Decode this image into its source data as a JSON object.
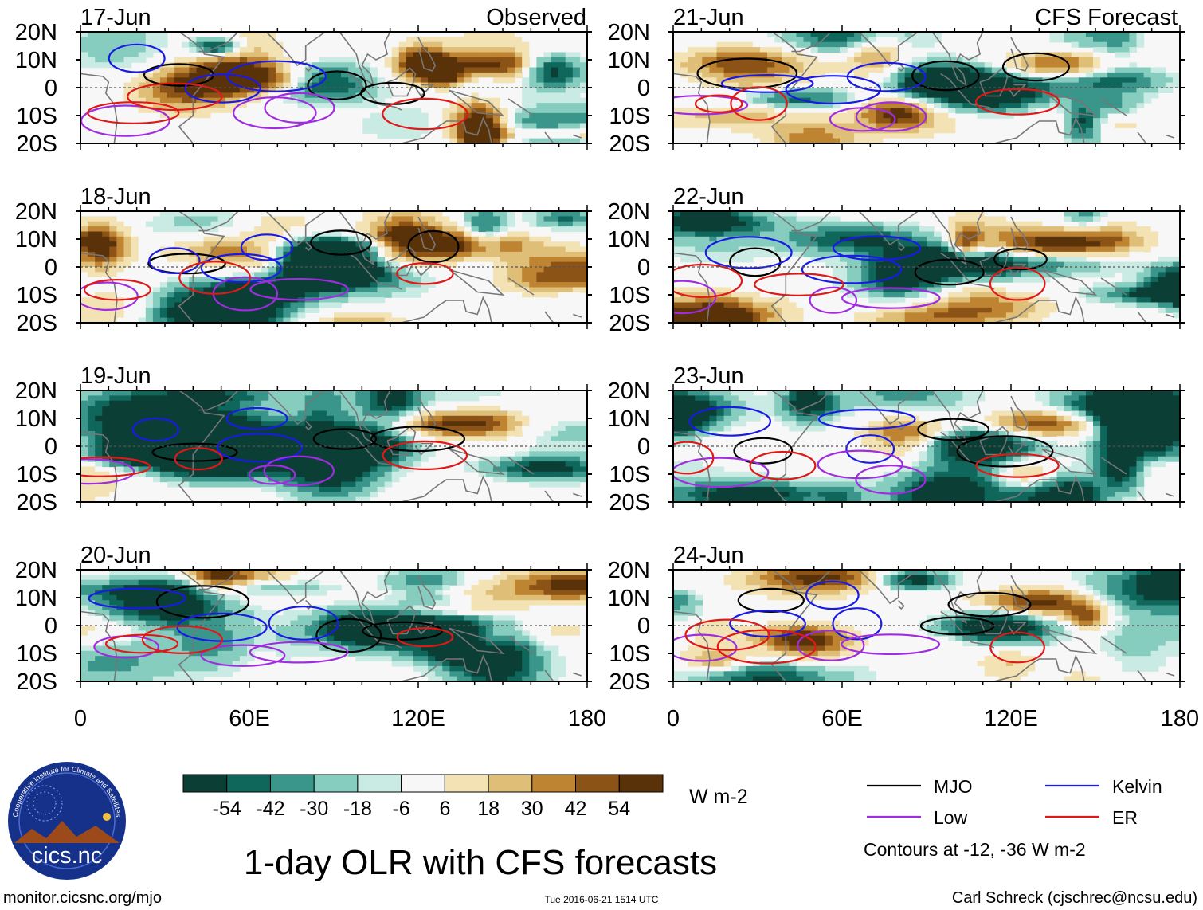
{
  "figure": {
    "title": "1-day OLR with CFS forecasts",
    "website": "monitor.cicsnc.org/mjo",
    "timestamp": "Tue 2016-06-21 1514 UTC",
    "credit": "Carl Schreck (cjschrec@ncsu.edu)",
    "logo": {
      "text": "cics.nc",
      "ring_text": "Cooperative Institute for Climate and Satellites"
    },
    "columns": {
      "left": "Observed",
      "right": "CFS Forecast"
    }
  },
  "chart_data": {
    "type": "heatmap",
    "variable": "OLR anomaly",
    "units": "W m-2",
    "xlim": [
      0,
      180
    ],
    "ylim": [
      -20,
      20
    ],
    "x_ticks": [
      {
        "value": 0,
        "label": "0"
      },
      {
        "value": 60,
        "label": "60E"
      },
      {
        "value": 120,
        "label": "120E"
      },
      {
        "value": 180,
        "label": "180"
      }
    ],
    "y_ticks": [
      {
        "value": 20,
        "label": "20N"
      },
      {
        "value": 10,
        "label": "10N"
      },
      {
        "value": 0,
        "label": "0"
      },
      {
        "value": -10,
        "label": "10S"
      },
      {
        "value": -20,
        "label": "20S"
      }
    ],
    "panels": [
      {
        "date": "17-Jun",
        "source": "Observed",
        "column": 0,
        "row": 0,
        "seed": 17
      },
      {
        "date": "18-Jun",
        "source": "Observed",
        "column": 0,
        "row": 1,
        "seed": 18
      },
      {
        "date": "19-Jun",
        "source": "Observed",
        "column": 0,
        "row": 2,
        "seed": 19
      },
      {
        "date": "20-Jun",
        "source": "Observed",
        "column": 0,
        "row": 3,
        "seed": 20
      },
      {
        "date": "21-Jun",
        "source": "CFS Forecast",
        "column": 1,
        "row": 0,
        "seed": 21
      },
      {
        "date": "22-Jun",
        "source": "CFS Forecast",
        "column": 1,
        "row": 1,
        "seed": 22
      },
      {
        "date": "23-Jun",
        "source": "CFS Forecast",
        "column": 1,
        "row": 2,
        "seed": 23
      },
      {
        "date": "24-Jun",
        "source": "CFS Forecast",
        "column": 1,
        "row": 3,
        "seed": 24
      }
    ],
    "colorbar": {
      "units": "W m-2",
      "tick_labels": [
        "-54",
        "-42",
        "-30",
        "-18",
        "-6",
        "6",
        "18",
        "30",
        "42",
        "54"
      ],
      "colors": [
        "#0b3f36",
        "#0f665b",
        "#3a958a",
        "#86cdbf",
        "#c9ebe3",
        "#f7f7f7",
        "#f3e2b4",
        "#dfbe78",
        "#bf8432",
        "#8c5316",
        "#5a3209"
      ]
    },
    "legend": {
      "items": [
        {
          "label": "MJO",
          "color": "#000000"
        },
        {
          "label": "Kelvin",
          "color": "#1a1ae6"
        },
        {
          "label": "Low",
          "color": "#a02ce0"
        },
        {
          "label": "ER",
          "color": "#e01818"
        }
      ],
      "note": "Contours at -12, -36 W m-2"
    }
  }
}
